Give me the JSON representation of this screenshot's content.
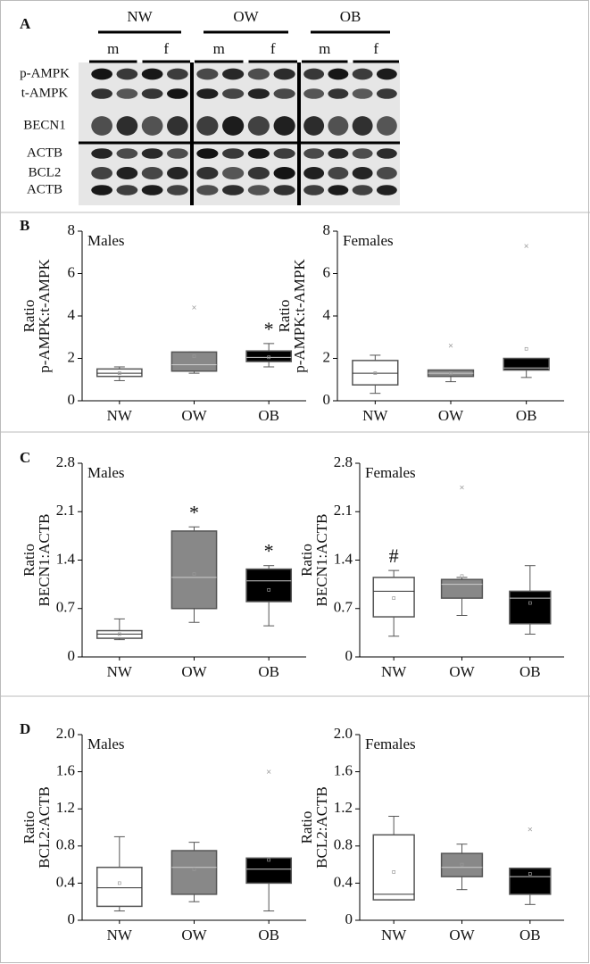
{
  "panel_a": {
    "label": "A",
    "groups": [
      "NW",
      "OW",
      "OB"
    ],
    "sexes": [
      [
        "m",
        "f"
      ],
      [
        "m",
        "f"
      ],
      [
        "m",
        "f"
      ]
    ],
    "rows": [
      "p-AMPK",
      "t-AMPK",
      "BECN1",
      "ACTB",
      "BCL2",
      "ACTB"
    ]
  },
  "chart_data": [
    {
      "type": "box",
      "panel": "B",
      "title": "Males",
      "ylabel": [
        "Ratio",
        "p-AMPK:t-AMPK"
      ],
      "categories": [
        "NW",
        "OW",
        "OB"
      ],
      "colors": [
        "#ffffff",
        "#888888",
        "#000000"
      ],
      "ylim": [
        0,
        8
      ],
      "yticks": [
        0,
        2,
        4,
        6,
        8
      ],
      "annotations": [
        null,
        null,
        "*"
      ],
      "boxes": [
        {
          "low": 0.95,
          "q1": 1.15,
          "median": 1.3,
          "q3": 1.5,
          "high": 1.6,
          "mean": 1.3,
          "outliers": []
        },
        {
          "low": 1.3,
          "q1": 1.4,
          "median": 1.7,
          "q3": 2.3,
          "high": 2.3,
          "mean": 2.1,
          "outliers": [
            4.4
          ]
        },
        {
          "low": 1.6,
          "q1": 1.85,
          "median": 2.05,
          "q3": 2.35,
          "high": 2.7,
          "mean": 2.05,
          "outliers": []
        }
      ]
    },
    {
      "type": "box",
      "title": "Females",
      "ylabel": [
        "Ratio",
        "p-AMPK:t-AMPK"
      ],
      "categories": [
        "NW",
        "OW",
        "OB"
      ],
      "colors": [
        "#ffffff",
        "#888888",
        "#000000"
      ],
      "ylim": [
        0,
        8
      ],
      "yticks": [
        0,
        2,
        4,
        6,
        8
      ],
      "annotations": [
        null,
        null,
        null
      ],
      "boxes": [
        {
          "low": 0.35,
          "q1": 0.75,
          "median": 1.3,
          "q3": 1.9,
          "high": 2.15,
          "mean": 1.3,
          "outliers": []
        },
        {
          "low": 0.9,
          "q1": 1.15,
          "median": 1.3,
          "q3": 1.45,
          "high": 1.45,
          "mean": 1.3,
          "outliers": [
            2.6
          ]
        },
        {
          "low": 1.1,
          "q1": 1.45,
          "median": 1.55,
          "q3": 2.0,
          "high": 2.0,
          "mean": 2.45,
          "outliers": [
            7.3
          ]
        }
      ]
    },
    {
      "type": "box",
      "panel": "C",
      "title": "Males",
      "ylabel": [
        "Ratio",
        "BECN1:ACTB"
      ],
      "categories": [
        "NW",
        "OW",
        "OB"
      ],
      "colors": [
        "#ffffff",
        "#888888",
        "#000000"
      ],
      "ylim": [
        0,
        2.8
      ],
      "yticks": [
        0,
        0.7,
        1.4,
        2.1,
        2.8
      ],
      "annotations": [
        null,
        "*",
        "*"
      ],
      "boxes": [
        {
          "low": 0.25,
          "q1": 0.27,
          "median": 0.33,
          "q3": 0.38,
          "high": 0.55,
          "mean": 0.33,
          "outliers": []
        },
        {
          "low": 0.5,
          "q1": 0.7,
          "median": 1.15,
          "q3": 1.82,
          "high": 1.88,
          "mean": 1.2,
          "outliers": []
        },
        {
          "low": 0.45,
          "q1": 0.8,
          "median": 1.1,
          "q3": 1.27,
          "high": 1.32,
          "mean": 0.97,
          "outliers": []
        }
      ]
    },
    {
      "type": "box",
      "title": "Females",
      "ylabel": [
        "Ratio",
        "BECN1:ACTB"
      ],
      "categories": [
        "NW",
        "OW",
        "OB"
      ],
      "colors": [
        "#ffffff",
        "#888888",
        "#000000"
      ],
      "ylim": [
        0,
        2.8
      ],
      "yticks": [
        0,
        0.7,
        1.4,
        2.1,
        2.8
      ],
      "annotations": [
        "#",
        null,
        null
      ],
      "boxes": [
        {
          "low": 0.3,
          "q1": 0.58,
          "median": 0.95,
          "q3": 1.15,
          "high": 1.25,
          "mean": 0.85,
          "outliers": []
        },
        {
          "low": 0.6,
          "q1": 0.85,
          "median": 1.05,
          "q3": 1.12,
          "high": 1.15,
          "mean": 1.17,
          "outliers": [
            2.45
          ]
        },
        {
          "low": 0.33,
          "q1": 0.48,
          "median": 0.85,
          "q3": 0.95,
          "high": 1.32,
          "mean": 0.78,
          "outliers": []
        }
      ]
    },
    {
      "type": "box",
      "panel": "D",
      "title": "Males",
      "ylabel": [
        "Ratio",
        "BCL2:ACTB"
      ],
      "categories": [
        "NW",
        "OW",
        "OB"
      ],
      "colors": [
        "#ffffff",
        "#888888",
        "#000000"
      ],
      "ylim": [
        0,
        2
      ],
      "yticks": [
        0,
        0.4,
        0.8,
        1.2,
        1.6,
        {
          "value": 2,
          "label": "2.0"
        }
      ],
      "annotations": [
        null,
        null,
        null
      ],
      "boxes": [
        {
          "low": 0.1,
          "q1": 0.15,
          "median": 0.35,
          "q3": 0.57,
          "high": 0.9,
          "mean": 0.4,
          "outliers": []
        },
        {
          "low": 0.2,
          "q1": 0.28,
          "median": 0.57,
          "q3": 0.75,
          "high": 0.84,
          "mean": 0.55,
          "outliers": []
        },
        {
          "low": 0.1,
          "q1": 0.4,
          "median": 0.55,
          "q3": 0.67,
          "high": 0.67,
          "mean": 0.65,
          "outliers": [
            1.6
          ]
        }
      ]
    },
    {
      "type": "box",
      "title": "Females",
      "ylabel": [
        "Ratio",
        "BCL2:ACTB"
      ],
      "categories": [
        "NW",
        "OW",
        "OB"
      ],
      "colors": [
        "#ffffff",
        "#888888",
        "#000000"
      ],
      "ylim": [
        0,
        2
      ],
      "yticks": [
        0,
        0.4,
        0.8,
        1.2,
        1.6,
        {
          "value": 2,
          "label": "2.0"
        }
      ],
      "annotations": [
        null,
        null,
        null
      ],
      "boxes": [
        {
          "low": 0.22,
          "q1": 0.22,
          "median": 0.28,
          "q3": 0.92,
          "high": 1.12,
          "mean": 0.52,
          "outliers": []
        },
        {
          "low": 0.33,
          "q1": 0.47,
          "median": 0.57,
          "q3": 0.72,
          "high": 0.82,
          "mean": 0.6,
          "outliers": []
        },
        {
          "low": 0.17,
          "q1": 0.28,
          "median": 0.47,
          "q3": 0.56,
          "high": 0.56,
          "mean": 0.5,
          "outliers": [
            0.98
          ]
        }
      ]
    }
  ]
}
